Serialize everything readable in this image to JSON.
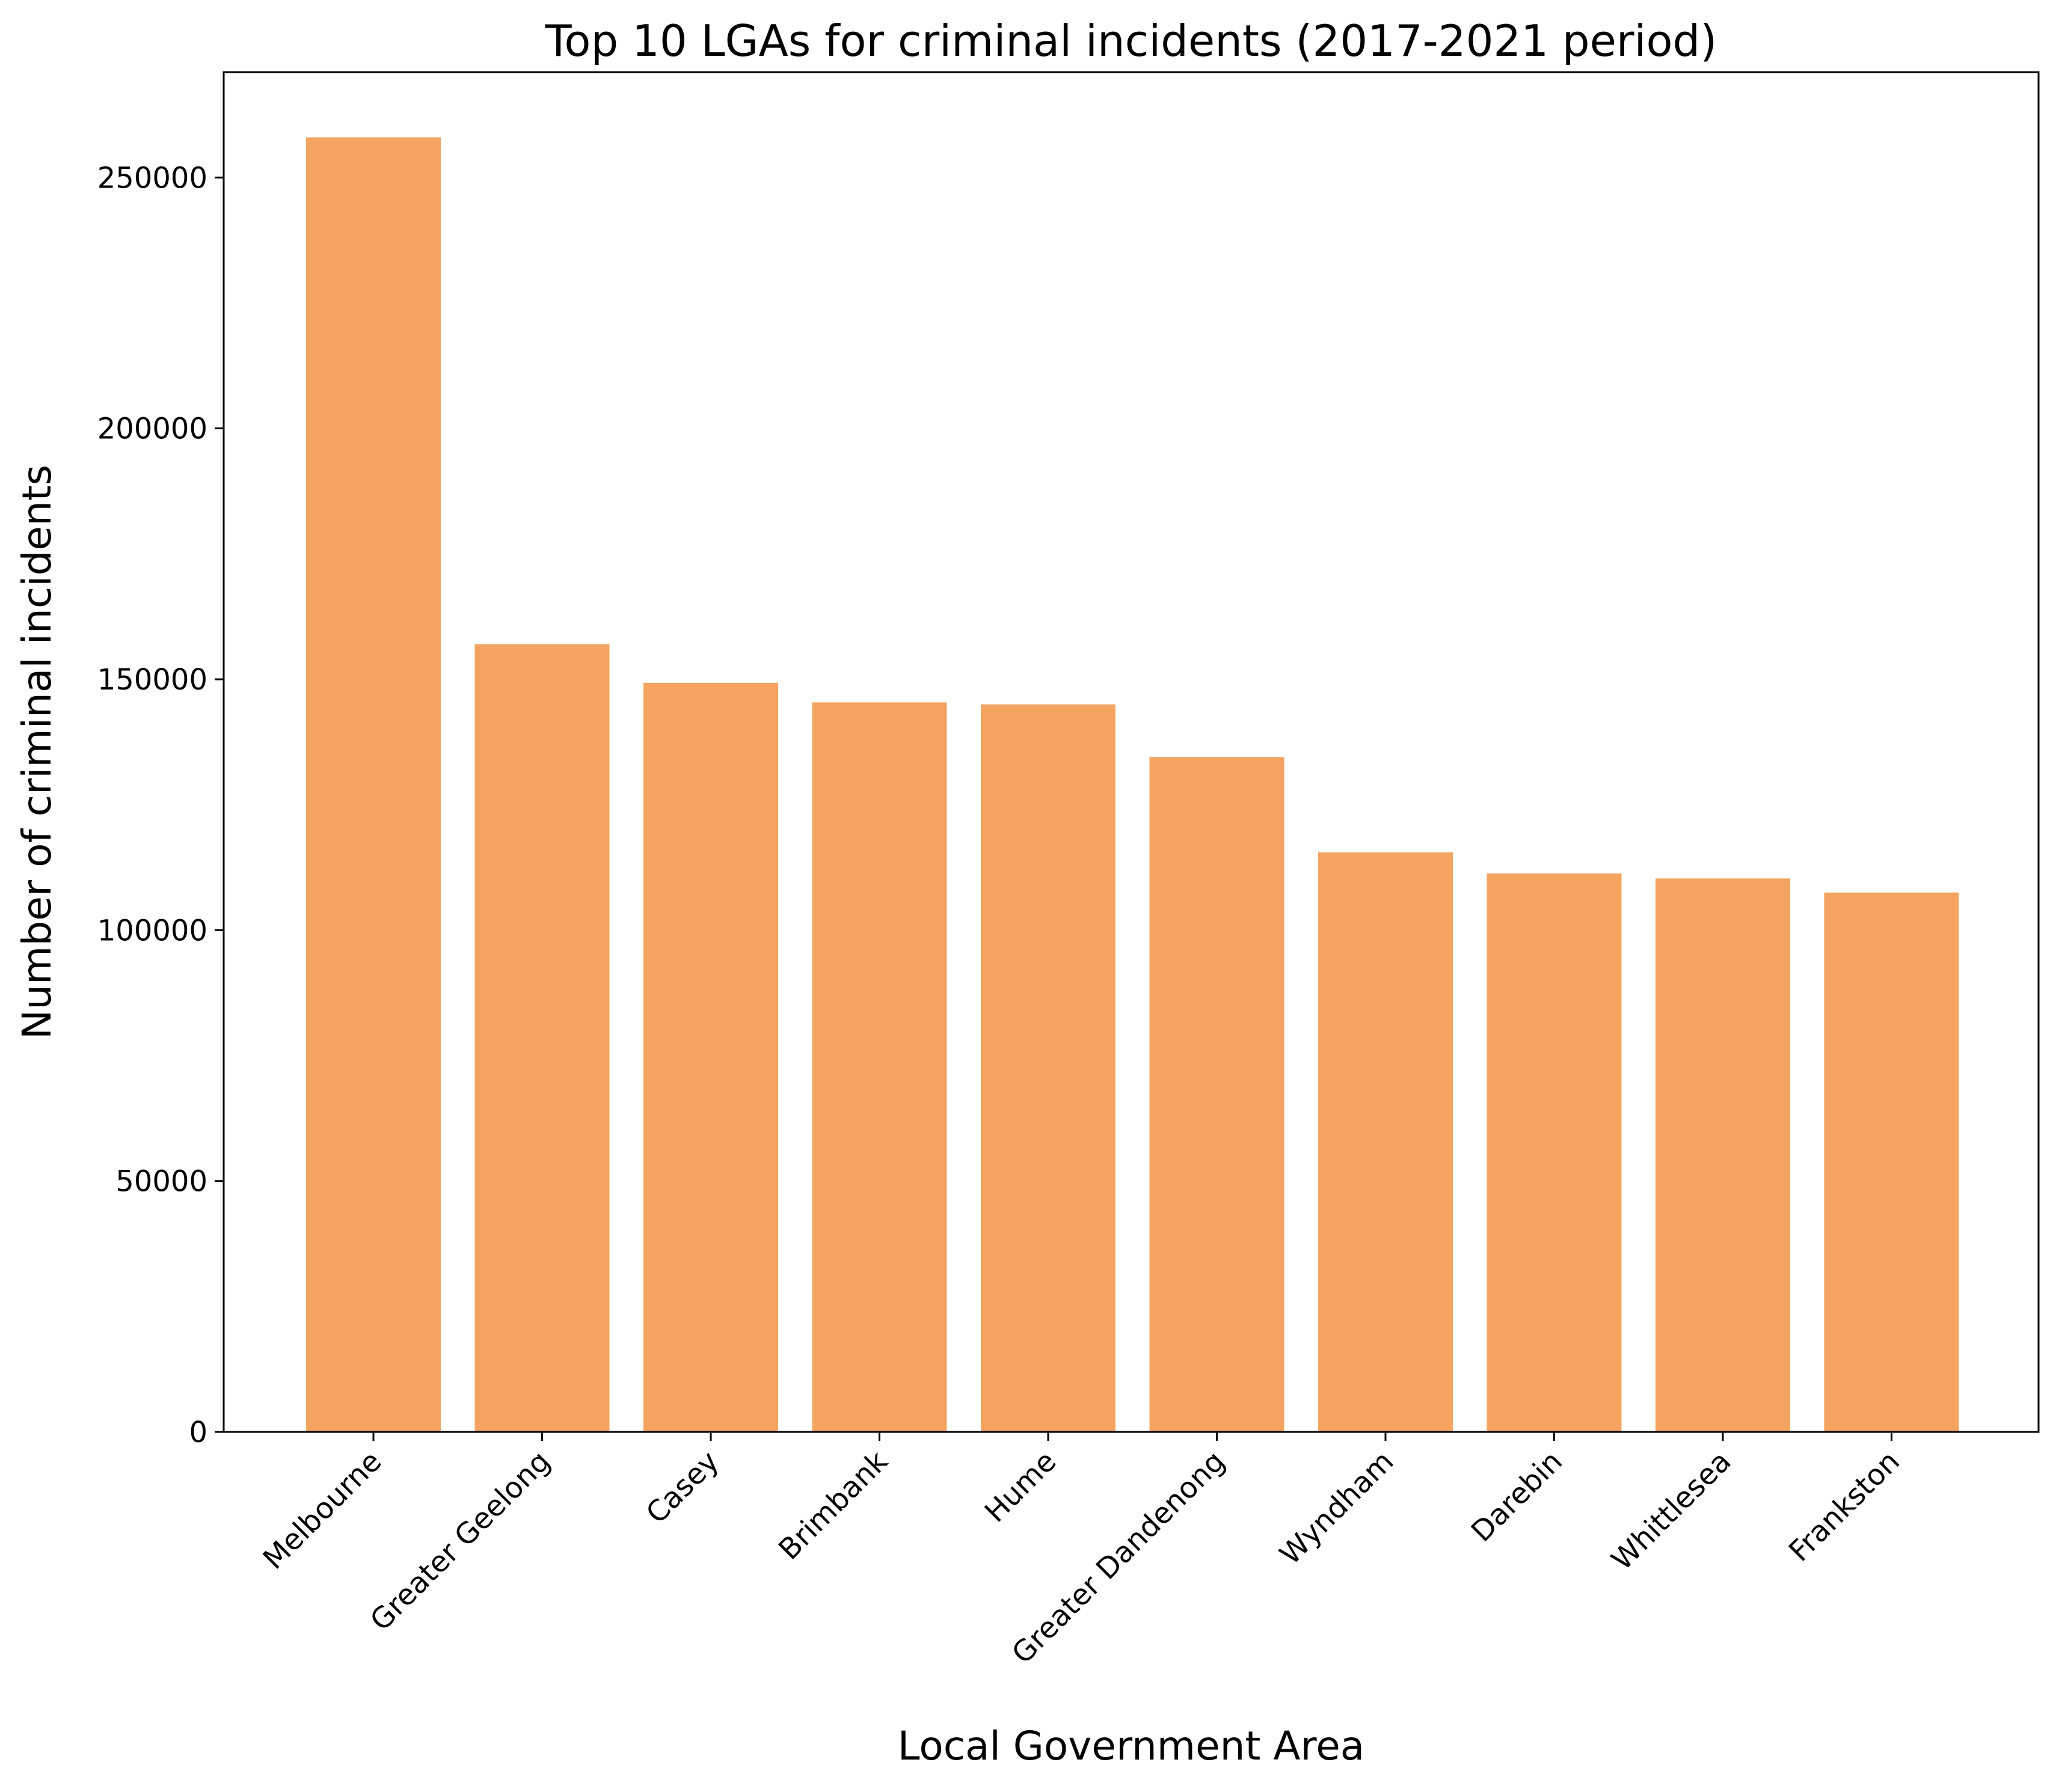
{
  "chart_data": {
    "type": "bar",
    "title": "Top 10 LGAs for criminal incidents (2017-2021 period)",
    "xlabel": "Local Government Area",
    "ylabel": "Number of criminal incidents",
    "categories": [
      "Melbourne",
      "Greater Geelong",
      "Casey",
      "Brimbank",
      "Hume",
      "Greater Dandenong",
      "Wyndham",
      "Darebin",
      "Whittlesea",
      "Frankston"
    ],
    "values": [
      258000,
      157000,
      149300,
      145400,
      145000,
      134500,
      115500,
      111300,
      110300,
      107500
    ],
    "ylim": [
      0,
      271000
    ],
    "yticks": [
      0,
      50000,
      100000,
      150000,
      200000,
      250000
    ],
    "ytick_labels": [
      "0",
      "50000",
      "100000",
      "150000",
      "200000",
      "250000"
    ],
    "grid": false,
    "legend": "none",
    "bar_color": "#f4a460"
  }
}
